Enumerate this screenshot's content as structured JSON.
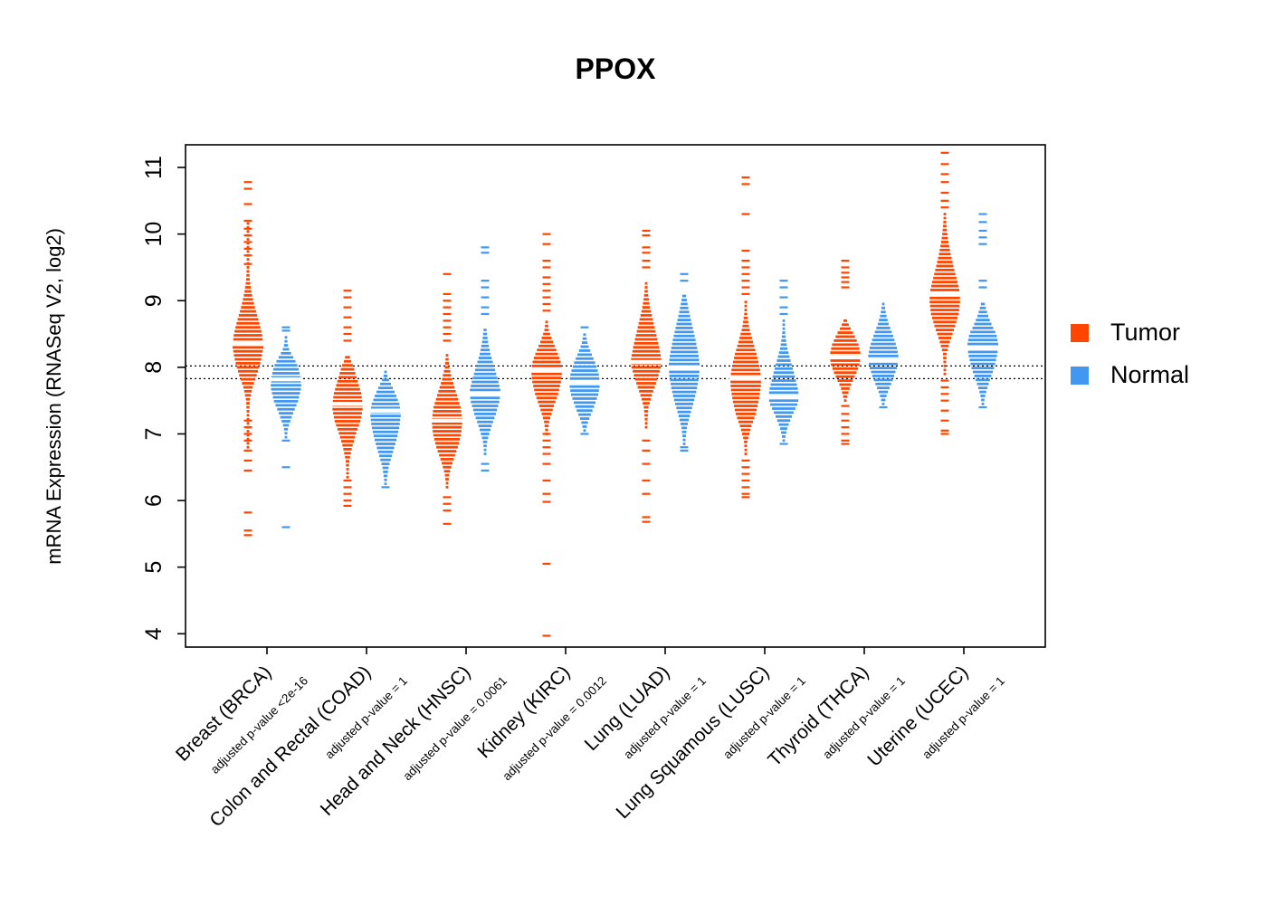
{
  "chart_data": {
    "type": "violin",
    "title": "PPOX",
    "xlabel": "",
    "ylabel": "mRNA Expression (RNASeq V2, log2)",
    "yticks": [
      4,
      5,
      6,
      7,
      8,
      9,
      10,
      11
    ],
    "ylim": [
      3.8,
      11.34
    ],
    "grid": false,
    "legend_position": "right",
    "reference_lines": [
      8.02,
      7.83
    ],
    "legend": [
      {
        "label": "Tumor",
        "color": "#FF4500"
      },
      {
        "label": "Normal",
        "color": "#4297F0"
      }
    ],
    "groups": [
      {
        "label": "Breast (BRCA)",
        "pvalue_label": "adjusted p-value <2e-16",
        "tumor": {
          "median": 8.35,
          "shape": [
            [
              6.8,
              0.04
            ],
            [
              7.2,
              0.06
            ],
            [
              7.5,
              0.12
            ],
            [
              7.7,
              0.3
            ],
            [
              7.9,
              0.6
            ],
            [
              8.1,
              0.85
            ],
            [
              8.3,
              1.0
            ],
            [
              8.5,
              0.92
            ],
            [
              8.7,
              0.7
            ],
            [
              8.9,
              0.45
            ],
            [
              9.1,
              0.25
            ],
            [
              9.3,
              0.12
            ],
            [
              9.6,
              0.06
            ],
            [
              10.2,
              0.04
            ]
          ],
          "outliers": [
            10.78,
            10.68,
            10.45,
            10.2,
            10.08,
            9.98,
            9.88,
            9.78,
            9.68,
            9.55,
            7.2,
            7.1,
            7.0,
            6.9,
            6.75,
            6.6,
            6.45,
            5.82,
            5.55,
            5.48
          ]
        },
        "normal": {
          "median": 7.82,
          "shape": [
            [
              6.95,
              0.05
            ],
            [
              7.1,
              0.15
            ],
            [
              7.3,
              0.45
            ],
            [
              7.5,
              0.8
            ],
            [
              7.7,
              1.0
            ],
            [
              7.85,
              0.95
            ],
            [
              8.0,
              0.8
            ],
            [
              8.1,
              0.6
            ],
            [
              8.2,
              0.35
            ],
            [
              8.3,
              0.15
            ],
            [
              8.45,
              0.06
            ]
          ],
          "outliers": [
            8.6,
            8.55,
            6.9,
            6.5,
            5.6
          ]
        }
      },
      {
        "label": "Colon and Rectal (COAD)",
        "pvalue_label": "adjusted p-value = 1",
        "tumor": {
          "median": 7.45,
          "shape": [
            [
              6.35,
              0.05
            ],
            [
              6.6,
              0.12
            ],
            [
              6.8,
              0.3
            ],
            [
              7.0,
              0.55
            ],
            [
              7.2,
              0.85
            ],
            [
              7.4,
              1.0
            ],
            [
              7.6,
              0.9
            ],
            [
              7.8,
              0.65
            ],
            [
              8.0,
              0.4
            ],
            [
              8.1,
              0.22
            ],
            [
              8.2,
              0.1
            ]
          ],
          "outliers": [
            9.15,
            9.05,
            8.9,
            8.75,
            8.6,
            8.5,
            8.4,
            6.3,
            6.2,
            6.1,
            6.0,
            5.92
          ]
        },
        "normal": {
          "median": 7.35,
          "shape": [
            [
              6.25,
              0.06
            ],
            [
              6.5,
              0.2
            ],
            [
              6.7,
              0.45
            ],
            [
              6.9,
              0.7
            ],
            [
              7.1,
              0.9
            ],
            [
              7.3,
              1.0
            ],
            [
              7.45,
              0.9
            ],
            [
              7.6,
              0.65
            ],
            [
              7.75,
              0.35
            ],
            [
              7.85,
              0.15
            ],
            [
              7.95,
              0.06
            ]
          ],
          "outliers": [
            6.2
          ]
        }
      },
      {
        "label": "Head and Neck (HNSC)",
        "pvalue_label": "adjusted p-value = 0.0061",
        "tumor": {
          "median": 7.2,
          "shape": [
            [
              6.2,
              0.05
            ],
            [
              6.4,
              0.15
            ],
            [
              6.6,
              0.4
            ],
            [
              6.8,
              0.7
            ],
            [
              7.0,
              0.92
            ],
            [
              7.2,
              1.0
            ],
            [
              7.4,
              0.88
            ],
            [
              7.6,
              0.62
            ],
            [
              7.8,
              0.35
            ],
            [
              8.0,
              0.15
            ],
            [
              8.2,
              0.07
            ]
          ],
          "outliers": [
            9.4,
            9.1,
            9.0,
            8.9,
            8.8,
            8.7,
            8.6,
            8.5,
            8.4,
            6.05,
            5.95,
            5.85,
            5.65
          ]
        },
        "normal": {
          "median": 7.6,
          "shape": [
            [
              6.7,
              0.05
            ],
            [
              6.9,
              0.15
            ],
            [
              7.1,
              0.4
            ],
            [
              7.3,
              0.7
            ],
            [
              7.5,
              0.95
            ],
            [
              7.65,
              1.0
            ],
            [
              7.8,
              0.85
            ],
            [
              8.0,
              0.6
            ],
            [
              8.2,
              0.35
            ],
            [
              8.4,
              0.18
            ],
            [
              8.6,
              0.08
            ]
          ],
          "outliers": [
            9.8,
            9.72,
            9.3,
            9.2,
            9.05,
            8.9,
            8.8,
            6.55,
            6.45
          ]
        }
      },
      {
        "label": "Kidney (KIRC)",
        "pvalue_label": "adjusted p-value = 0.0012",
        "tumor": {
          "median": 7.95,
          "shape": [
            [
              7.0,
              0.06
            ],
            [
              7.2,
              0.18
            ],
            [
              7.4,
              0.45
            ],
            [
              7.6,
              0.75
            ],
            [
              7.8,
              0.95
            ],
            [
              7.95,
              1.0
            ],
            [
              8.1,
              0.9
            ],
            [
              8.25,
              0.65
            ],
            [
              8.4,
              0.38
            ],
            [
              8.55,
              0.15
            ],
            [
              8.7,
              0.06
            ]
          ],
          "outliers": [
            10.0,
            9.85,
            9.6,
            9.5,
            9.35,
            9.25,
            9.15,
            9.05,
            8.95,
            8.85,
            7.0,
            6.9,
            6.8,
            6.7,
            6.55,
            6.3,
            6.1,
            5.98,
            5.05,
            3.97
          ]
        },
        "normal": {
          "median": 7.78,
          "shape": [
            [
              7.05,
              0.07
            ],
            [
              7.2,
              0.25
            ],
            [
              7.4,
              0.6
            ],
            [
              7.6,
              0.9
            ],
            [
              7.75,
              1.0
            ],
            [
              7.9,
              0.92
            ],
            [
              8.05,
              0.72
            ],
            [
              8.2,
              0.45
            ],
            [
              8.35,
              0.2
            ],
            [
              8.5,
              0.08
            ]
          ],
          "outliers": [
            8.6,
            7.0
          ]
        }
      },
      {
        "label": "Lung (LUAD)",
        "pvalue_label": "adjusted p-value = 1",
        "tumor": {
          "median": 8.08,
          "shape": [
            [
              7.1,
              0.05
            ],
            [
              7.4,
              0.15
            ],
            [
              7.6,
              0.4
            ],
            [
              7.8,
              0.7
            ],
            [
              8.0,
              0.95
            ],
            [
              8.1,
              1.0
            ],
            [
              8.3,
              0.85
            ],
            [
              8.5,
              0.65
            ],
            [
              8.7,
              0.45
            ],
            [
              8.9,
              0.25
            ],
            [
              9.1,
              0.12
            ],
            [
              9.3,
              0.06
            ]
          ],
          "outliers": [
            10.05,
            9.98,
            9.8,
            9.72,
            9.6,
            9.5,
            6.9,
            6.75,
            6.55,
            6.3,
            6.1,
            5.75,
            5.68
          ]
        },
        "normal": {
          "median": 8.0,
          "shape": [
            [
              6.85,
              0.06
            ],
            [
              7.1,
              0.18
            ],
            [
              7.3,
              0.4
            ],
            [
              7.5,
              0.65
            ],
            [
              7.7,
              0.85
            ],
            [
              7.9,
              0.98
            ],
            [
              8.05,
              1.0
            ],
            [
              8.2,
              0.92
            ],
            [
              8.4,
              0.75
            ],
            [
              8.6,
              0.55
            ],
            [
              8.8,
              0.35
            ],
            [
              9.0,
              0.18
            ],
            [
              9.1,
              0.1
            ]
          ],
          "outliers": [
            9.4,
            9.3,
            6.8,
            6.75
          ]
        }
      },
      {
        "label": "Lung Squamous (LUSC)",
        "pvalue_label": "adjusted p-value = 1",
        "tumor": {
          "median": 7.85,
          "shape": [
            [
              6.7,
              0.05
            ],
            [
              6.9,
              0.12
            ],
            [
              7.1,
              0.35
            ],
            [
              7.3,
              0.65
            ],
            [
              7.5,
              0.85
            ],
            [
              7.7,
              0.98
            ],
            [
              7.85,
              1.0
            ],
            [
              8.0,
              0.9
            ],
            [
              8.2,
              0.7
            ],
            [
              8.4,
              0.45
            ],
            [
              8.6,
              0.22
            ],
            [
              8.8,
              0.1
            ],
            [
              9.0,
              0.05
            ]
          ],
          "outliers": [
            10.85,
            10.75,
            10.3,
            9.75,
            9.6,
            9.5,
            9.4,
            9.3,
            9.2,
            9.1,
            6.6,
            6.5,
            6.4,
            6.3,
            6.2,
            6.1,
            6.05
          ]
        },
        "normal": {
          "median": 7.55,
          "shape": [
            [
              6.9,
              0.06
            ],
            [
              7.1,
              0.25
            ],
            [
              7.3,
              0.6
            ],
            [
              7.45,
              0.9
            ],
            [
              7.55,
              1.0
            ],
            [
              7.7,
              0.9
            ],
            [
              7.9,
              0.68
            ],
            [
              8.1,
              0.45
            ],
            [
              8.3,
              0.22
            ],
            [
              8.5,
              0.1
            ],
            [
              8.7,
              0.05
            ]
          ],
          "outliers": [
            9.3,
            9.2,
            9.05,
            8.9,
            8.8,
            6.85
          ]
        }
      },
      {
        "label": "Thyroid (THCA)",
        "pvalue_label": "adjusted p-value = 1",
        "tumor": {
          "median": 8.15,
          "shape": [
            [
              7.5,
              0.07
            ],
            [
              7.7,
              0.3
            ],
            [
              7.9,
              0.7
            ],
            [
              8.05,
              0.95
            ],
            [
              8.2,
              1.0
            ],
            [
              8.35,
              0.85
            ],
            [
              8.5,
              0.55
            ],
            [
              8.6,
              0.3
            ],
            [
              8.7,
              0.12
            ]
          ],
          "outliers": [
            9.6,
            9.5,
            9.42,
            9.35,
            9.28,
            9.2,
            7.42,
            7.3,
            7.2,
            7.1,
            7.0,
            6.9,
            6.85
          ]
        },
        "normal": {
          "median": 8.1,
          "shape": [
            [
              7.45,
              0.07
            ],
            [
              7.6,
              0.25
            ],
            [
              7.8,
              0.6
            ],
            [
              8.0,
              0.9
            ],
            [
              8.15,
              1.0
            ],
            [
              8.3,
              0.88
            ],
            [
              8.5,
              0.6
            ],
            [
              8.65,
              0.35
            ],
            [
              8.8,
              0.18
            ],
            [
              8.95,
              0.08
            ]
          ],
          "outliers": [
            7.4
          ]
        }
      },
      {
        "label": "Uterine (UCEC)",
        "pvalue_label": "adjusted p-value = 1",
        "tumor": {
          "median": 9.1,
          "shape": [
            [
              7.9,
              0.05
            ],
            [
              8.2,
              0.12
            ],
            [
              8.4,
              0.35
            ],
            [
              8.6,
              0.65
            ],
            [
              8.8,
              0.9
            ],
            [
              9.0,
              1.0
            ],
            [
              9.15,
              0.95
            ],
            [
              9.3,
              0.8
            ],
            [
              9.5,
              0.58
            ],
            [
              9.7,
              0.38
            ],
            [
              9.9,
              0.22
            ],
            [
              10.1,
              0.12
            ],
            [
              10.3,
              0.06
            ]
          ],
          "outliers": [
            11.22,
            11.05,
            10.9,
            10.78,
            10.62,
            10.5,
            10.4,
            7.8,
            7.7,
            7.6,
            7.5,
            7.35,
            7.2,
            7.05,
            7.0
          ]
        },
        "normal": {
          "median": 8.3,
          "shape": [
            [
              7.45,
              0.06
            ],
            [
              7.6,
              0.18
            ],
            [
              7.8,
              0.45
            ],
            [
              8.0,
              0.75
            ],
            [
              8.2,
              0.95
            ],
            [
              8.35,
              1.0
            ],
            [
              8.5,
              0.88
            ],
            [
              8.6,
              0.65
            ],
            [
              8.75,
              0.38
            ],
            [
              8.9,
              0.18
            ],
            [
              9.0,
              0.08
            ]
          ],
          "outliers": [
            10.3,
            10.18,
            10.05,
            9.95,
            9.85,
            9.3,
            9.2,
            7.4
          ]
        }
      }
    ]
  }
}
